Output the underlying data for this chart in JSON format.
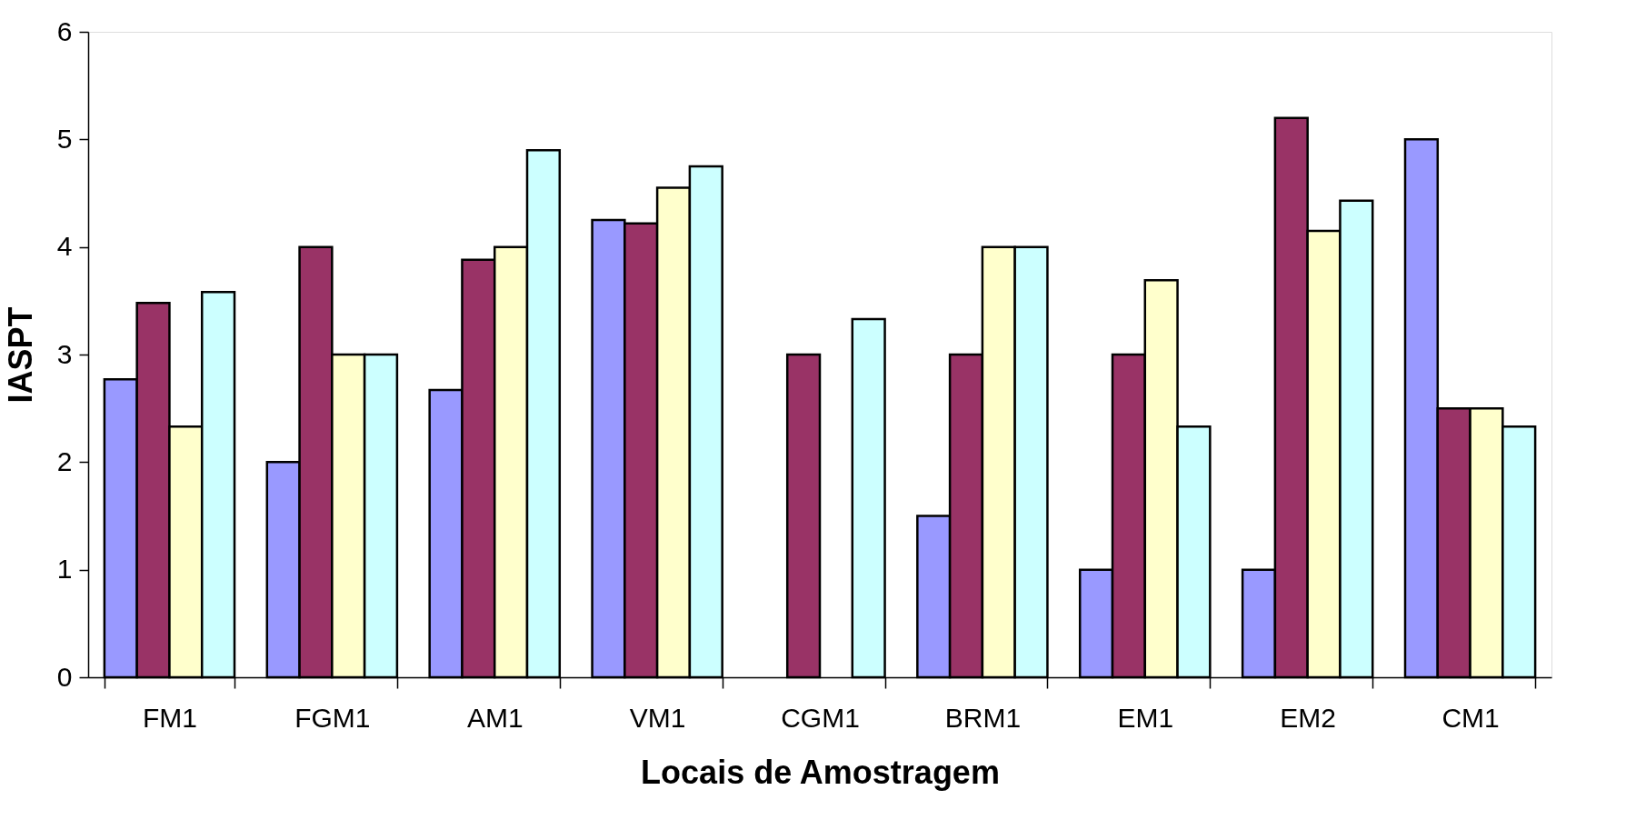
{
  "chart_data": {
    "type": "bar",
    "xlabel": "Locais de Amostragem",
    "ylabel": "IASPT",
    "categories": [
      "FM1",
      "FGM1",
      "AM1",
      "VM1",
      "CGM1",
      "BRM1",
      "EM1",
      "EM2",
      "CM1"
    ],
    "series": [
      {
        "color": "#9999ff",
        "values": [
          2.77,
          2.0,
          2.67,
          4.25,
          null,
          1.5,
          1.0,
          1.0,
          5.0
        ]
      },
      {
        "color": "#993366",
        "values": [
          3.48,
          4.0,
          3.88,
          4.22,
          3.0,
          3.0,
          3.0,
          5.2,
          2.5
        ]
      },
      {
        "color": "#ffffcc",
        "values": [
          2.33,
          3.0,
          4.0,
          4.55,
          null,
          4.0,
          3.69,
          4.15,
          2.5
        ]
      },
      {
        "color": "#ccffff",
        "values": [
          3.58,
          3.0,
          4.9,
          4.75,
          3.33,
          4.0,
          2.33,
          4.43,
          2.33
        ]
      }
    ],
    "ylim": [
      0,
      6
    ],
    "yticks": [
      0,
      1,
      2,
      3,
      4,
      5,
      6
    ],
    "grid": false,
    "legend": false
  }
}
